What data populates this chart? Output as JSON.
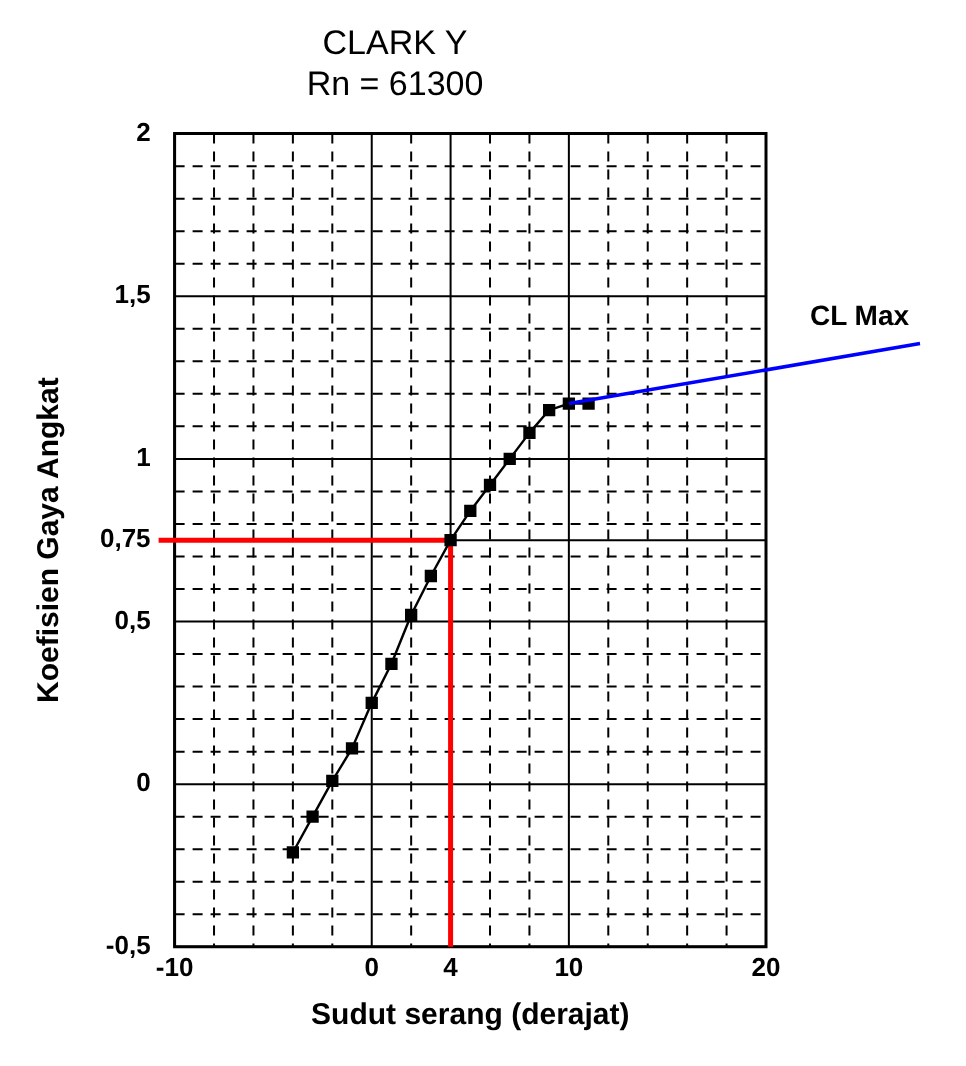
{
  "chart_data": {
    "type": "line",
    "title": "CLARK Y",
    "subtitle": "Rn = 61300",
    "xlabel": "Sudut serang (derajat)",
    "ylabel": "Koefisien Gaya Angkat",
    "x": [
      -4,
      -3,
      -2,
      -1,
      0,
      1,
      2,
      3,
      4,
      5,
      6,
      7,
      8,
      9,
      10,
      11
    ],
    "series": [
      {
        "color": "#000000",
        "values": [
          -0.21,
          -0.1,
          0.01,
          0.11,
          0.25,
          0.37,
          0.52,
          0.64,
          0.75,
          0.84,
          0.92,
          1.0,
          1.08,
          1.15,
          1.17,
          1.17
        ]
      }
    ],
    "xlim": [
      -10,
      20
    ],
    "ylim": [
      -0.5,
      2
    ],
    "xticks": [
      -10,
      {
        "value": -8,
        "label": null
      },
      {
        "value": -6,
        "label": null
      },
      {
        "value": -4,
        "label": null
      },
      {
        "value": -2,
        "label": null
      },
      0,
      {
        "value": 2,
        "label": null
      },
      4,
      {
        "value": 6,
        "label": null
      },
      {
        "value": 8,
        "label": null
      },
      10,
      {
        "value": 12,
        "label": null
      },
      {
        "value": 14,
        "label": null
      },
      {
        "value": 16,
        "label": null
      },
      {
        "value": 18,
        "label": null
      },
      20
    ],
    "yticks": [
      {
        "value": -0.5,
        "label": "-0,5"
      },
      {
        "value": -0.4,
        "label": null
      },
      {
        "value": -0.3,
        "label": null
      },
      {
        "value": -0.2,
        "label": null
      },
      {
        "value": -0.1,
        "label": null
      },
      0,
      {
        "value": 0.1,
        "label": null
      },
      {
        "value": 0.2,
        "label": null
      },
      {
        "value": 0.3,
        "label": null
      },
      {
        "value": 0.4,
        "label": null
      },
      {
        "value": 0.5,
        "label": "0,5"
      },
      {
        "value": 0.6,
        "label": null
      },
      {
        "value": 0.7,
        "label": null
      },
      {
        "value": 0.75,
        "label": "0,75"
      },
      {
        "value": 0.8,
        "label": null
      },
      {
        "value": 0.9,
        "label": null
      },
      1,
      {
        "value": 1.1,
        "label": null
      },
      {
        "value": 1.2,
        "label": null
      },
      {
        "value": 1.3,
        "label": null
      },
      {
        "value": 1.4,
        "label": null
      },
      {
        "value": 1.5,
        "label": "1,5"
      },
      {
        "value": 1.6,
        "label": null
      },
      {
        "value": 1.7,
        "label": null
      },
      {
        "value": 1.8,
        "label": null
      },
      {
        "value": 1.9,
        "label": null
      },
      2
    ],
    "ref_lines": [
      {
        "axis": "x",
        "value": 4,
        "color": "#ff0000"
      },
      {
        "axis": "y",
        "value": 0.75,
        "color": "#ff0000"
      }
    ],
    "annotations": [
      {
        "text": "CL Max",
        "x": 10,
        "y": 1.17
      }
    ],
    "grid": true,
    "legend": false,
    "marker": "square",
    "line_style": "solid"
  }
}
